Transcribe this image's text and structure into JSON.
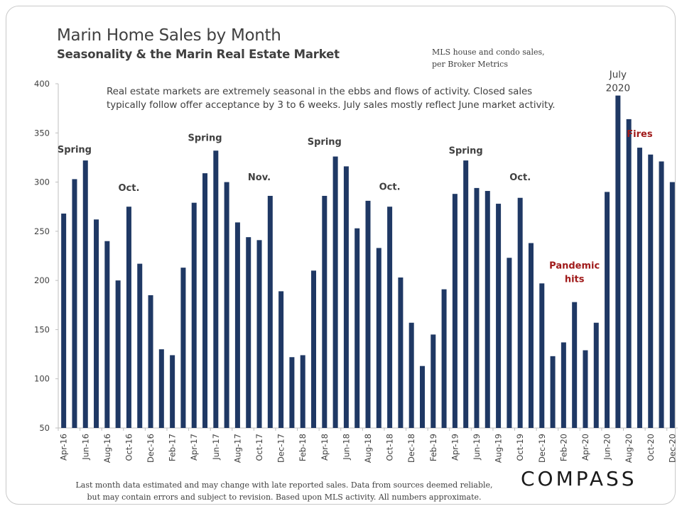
{
  "header": {
    "title": "Marin Home Sales by Month",
    "subtitle": "Seasonality & the Marin Real Estate Market",
    "source": [
      "MLS house and condo sales,",
      "per Broker Metrics"
    ]
  },
  "note": "Real estate markets are extremely seasonal in the ebbs and flows of activity. Closed sales typically follow offer acceptance by 3 to 6 weeks. July sales mostly reflect June market activity.",
  "footer": [
    "Last month data estimated and may change with late reported sales. Data from sources deemed reliable,",
    "but may contain errors and subject to revision. Based upon MLS activity. All numbers approximate."
  ],
  "logo": "COMPASS",
  "colors": {
    "bar": "#1f3864",
    "accent_red": "#a01a1a",
    "text": "#404040"
  },
  "chart_data": {
    "type": "bar",
    "ylim": [
      50,
      400
    ],
    "yticks": [
      50,
      100,
      150,
      200,
      250,
      300,
      350,
      400
    ],
    "categories": [
      "Apr-16",
      "May-16",
      "Jun-16",
      "Jul-16",
      "Aug-16",
      "Sep-16",
      "Oct-16",
      "Nov-16",
      "Dec-16",
      "Jan-17",
      "Feb-17",
      "Mar-17",
      "Apr-17",
      "May-17",
      "Jun-17",
      "Jul-17",
      "Aug-17",
      "Sep-17",
      "Oct-17",
      "Nov-17",
      "Dec-17",
      "Jan-18",
      "Feb-18",
      "Mar-18",
      "Apr-18",
      "May-18",
      "Jun-18",
      "Jul-18",
      "Aug-18",
      "Sep-18",
      "Oct-18",
      "Nov-18",
      "Dec-18",
      "Jan-19",
      "Feb-19",
      "Mar-19",
      "Apr-19",
      "May-19",
      "Jun-19",
      "Jul-19",
      "Aug-19",
      "Sep-19",
      "Oct-19",
      "Nov-19",
      "Dec-19",
      "Jan-20",
      "Feb-20",
      "Mar-20",
      "Apr-20",
      "May-20",
      "Jun-20",
      "Jul-20",
      "Aug-20",
      "Sep-20",
      "Oct-20",
      "Nov-20",
      "Dec-20"
    ],
    "xticklabels": [
      "Apr-16",
      "",
      "Jun-16",
      "",
      "Aug-16",
      "",
      "Oct-16",
      "",
      "Dec-16",
      "",
      "Feb-17",
      "",
      "Apr-17",
      "",
      "Jun-17",
      "",
      "Aug-17",
      "",
      "Oct-17",
      "",
      "Dec-17",
      "",
      "Feb-18",
      "",
      "Apr-18",
      "",
      "Jun-18",
      "",
      "Aug-18",
      "",
      "Oct-18",
      "",
      "Dec-18",
      "",
      "Feb-19",
      "",
      "Apr-19",
      "",
      "Jun-19",
      "",
      "Aug-19",
      "",
      "Oct-19",
      "",
      "Dec-19",
      "",
      "Feb-20",
      "",
      "Apr-20",
      "",
      "Jun-20",
      "",
      "Aug-20",
      "",
      "Oct-20",
      "",
      "Dec-20"
    ],
    "values": [
      268,
      303,
      322,
      262,
      240,
      200,
      275,
      217,
      185,
      130,
      124,
      213,
      279,
      309,
      332,
      300,
      259,
      244,
      241,
      286,
      189,
      122,
      124,
      210,
      286,
      326,
      316,
      253,
      281,
      233,
      275,
      203,
      157,
      113,
      145,
      191,
      288,
      322,
      294,
      291,
      278,
      223,
      284,
      238,
      197,
      123,
      137,
      178,
      129,
      157,
      290,
      388,
      364,
      335,
      328,
      321,
      300
    ],
    "annotations": [
      {
        "index": 1,
        "value": 330,
        "lines": [
          "Spring"
        ],
        "style": "dark"
      },
      {
        "index": 6,
        "value": 291,
        "lines": [
          "Oct."
        ],
        "style": "dark"
      },
      {
        "index": 13,
        "value": 342,
        "lines": [
          "Spring"
        ],
        "style": "dark"
      },
      {
        "index": 18,
        "value": 302,
        "lines": [
          "Nov."
        ],
        "style": "dark"
      },
      {
        "index": 24,
        "value": 338,
        "lines": [
          "Spring"
        ],
        "style": "dark"
      },
      {
        "index": 30,
        "value": 292,
        "lines": [
          "Oct."
        ],
        "style": "dark"
      },
      {
        "index": 37,
        "value": 329,
        "lines": [
          "Spring"
        ],
        "style": "dark"
      },
      {
        "index": 42,
        "value": 302,
        "lines": [
          "Oct."
        ],
        "style": "dark"
      },
      {
        "index": 47,
        "value": 212,
        "lines": [
          "Pandemic",
          "hits"
        ],
        "style": "red"
      },
      {
        "index": 51,
        "value": 406,
        "lines": [
          "July",
          "2020"
        ],
        "style": "dark"
      },
      {
        "index": 53,
        "value": 346,
        "lines": [
          "Fires"
        ],
        "style": "red"
      }
    ]
  }
}
